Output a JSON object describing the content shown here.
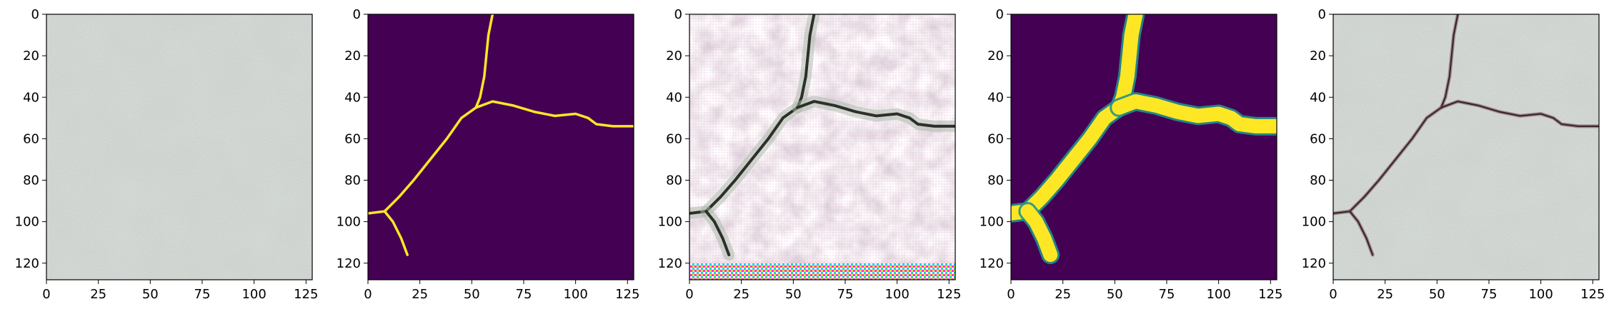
{
  "figure": {
    "panel_count": 5,
    "panels": [
      {
        "id": "original",
        "description": "grey concrete texture, no crack",
        "display": "rgb-image"
      },
      {
        "id": "crack-mask-thin",
        "description": "thin yellow crack skeleton on purple background",
        "display": "binary-mask",
        "colors": {
          "background": "#440154",
          "foreground": "#fde725"
        }
      },
      {
        "id": "generated-crack",
        "description": "synthesized pinkish concrete with dark crack and checkerboard artifacts near bottom",
        "display": "rgb-image"
      },
      {
        "id": "crack-mask-thick",
        "description": "thick yellow crack mask on purple background",
        "display": "binary-mask",
        "colors": {
          "background": "#440154",
          "foreground": "#fde725"
        }
      },
      {
        "id": "blended-result",
        "description": "grey concrete with thin dark crack overlay",
        "display": "rgb-image"
      }
    ],
    "axes": {
      "x_ticks": [
        "0",
        "25",
        "50",
        "75",
        "100",
        "125"
      ],
      "y_ticks": [
        "0",
        "20",
        "40",
        "60",
        "80",
        "100",
        "120"
      ],
      "x_range": [
        0,
        128
      ],
      "y_range": [
        0,
        128
      ]
    },
    "crack_path": [
      [
        60,
        0
      ],
      [
        58,
        10
      ],
      [
        57,
        20
      ],
      [
        56,
        30
      ],
      [
        54,
        40
      ],
      [
        52,
        45
      ],
      [
        45,
        50
      ],
      [
        38,
        60
      ],
      [
        30,
        70
      ],
      [
        22,
        80
      ],
      [
        15,
        88
      ],
      [
        8,
        95
      ],
      [
        0,
        96
      ]
    ],
    "crack_branch_right": [
      [
        52,
        45
      ],
      [
        60,
        42
      ],
      [
        70,
        44
      ],
      [
        80,
        47
      ],
      [
        90,
        49
      ],
      [
        100,
        48
      ],
      [
        106,
        50
      ],
      [
        110,
        53
      ],
      [
        118,
        54
      ],
      [
        128,
        54
      ]
    ],
    "crack_branch_down": [
      [
        8,
        95
      ],
      [
        12,
        100
      ],
      [
        16,
        108
      ],
      [
        19,
        116
      ]
    ]
  }
}
